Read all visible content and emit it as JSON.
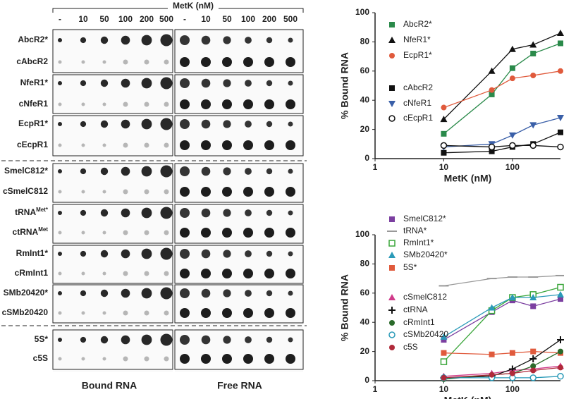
{
  "blot": {
    "header": "MetK (nM)",
    "concentrations": [
      "-",
      "10",
      "50",
      "100",
      "200",
      "500"
    ],
    "rows": [
      "AbcR2*",
      "cAbcR2",
      "NfeR1*",
      "cNfeR1",
      "EcpR1*",
      "cEcpR1",
      "SmelC812*",
      "cSmelC812",
      {
        "text": "tRNA",
        "sup": "Met*"
      },
      {
        "text": "ctRNA",
        "sup": "Met"
      },
      "RmInt1*",
      "cRmInt1",
      "SMb20420*",
      "cSMb20420",
      "5S*",
      "c5S"
    ],
    "footer": [
      "Bound RNA",
      "Free RNA"
    ]
  },
  "chart_data": [
    {
      "type": "line",
      "xlabel": "MetK (nM)",
      "ylabel": "% Bound RNA",
      "xlog": true,
      "xlim": [
        1,
        500
      ],
      "xticks": [
        1,
        10,
        100
      ],
      "ylim": [
        0,
        100
      ],
      "yticks": [
        0,
        20,
        40,
        60,
        80,
        100
      ],
      "x": [
        10,
        50,
        100,
        200,
        500
      ],
      "series": [
        {
          "name": "AbcR2*",
          "color": "#2a8a4a",
          "marker": "square",
          "values": [
            17,
            44,
            62,
            72,
            79
          ]
        },
        {
          "name": "NfeR1*",
          "color": "#111111",
          "marker": "triangle",
          "values": [
            27,
            60,
            75,
            78,
            86
          ]
        },
        {
          "name": "EcpR1*",
          "color": "#e05a3c",
          "marker": "circle",
          "values": [
            35,
            47,
            55,
            57,
            60
          ]
        },
        {
          "name": "cAbcR2",
          "color": "#111111",
          "marker": "square",
          "values": [
            4,
            5,
            8,
            10,
            18
          ]
        },
        {
          "name": "cNfeR1",
          "color": "#3a5fa8",
          "marker": "triangle-down",
          "values": [
            8,
            10,
            16,
            23,
            28
          ]
        },
        {
          "name": "cEcpR1",
          "color": "#111111",
          "marker": "open-circle",
          "values": [
            9,
            8,
            9,
            9,
            8
          ]
        }
      ]
    },
    {
      "type": "line",
      "xlabel": "MetK (nM)",
      "ylabel": "% Bound RNA",
      "xlog": true,
      "xlim": [
        1,
        500
      ],
      "xticks": [
        1,
        10,
        100
      ],
      "ylim": [
        0,
        100
      ],
      "yticks": [
        0,
        20,
        40,
        60,
        80,
        100
      ],
      "x": [
        10,
        50,
        100,
        200,
        500
      ],
      "series": [
        {
          "name": "SmelC812*",
          "color": "#7b3fa0",
          "marker": "square",
          "values": [
            28,
            47,
            55,
            51,
            56
          ]
        },
        {
          "name": "tRNA*",
          "color": "#999999",
          "marker": "line",
          "values": [
            65,
            70,
            71,
            71,
            72
          ]
        },
        {
          "name": "RmInt1*",
          "color": "#3aa63a",
          "marker": "open-square",
          "values": [
            13,
            48,
            57,
            59,
            64
          ]
        },
        {
          "name": "SMb20420*",
          "color": "#2a9ab8",
          "marker": "triangle",
          "values": [
            30,
            50,
            57,
            57,
            59
          ]
        },
        {
          "name": "5S*",
          "color": "#e05a3c",
          "marker": "square",
          "values": [
            19,
            18,
            19,
            20,
            19
          ]
        },
        {
          "name": "cSmelC812",
          "color": "#d03a8a",
          "marker": "triangle",
          "values": [
            3,
            5,
            7,
            8,
            10
          ]
        },
        {
          "name": "ctRNA",
          "color": "#111111",
          "marker": "plus",
          "values": [
            2,
            3,
            8,
            15,
            28
          ]
        },
        {
          "name": "cRmInt1",
          "color": "#2a6a2a",
          "marker": "circle",
          "values": [
            1,
            4,
            5,
            10,
            20
          ]
        },
        {
          "name": "cSMb20420",
          "color": "#2a9ab8",
          "marker": "open-circle",
          "values": [
            2,
            2,
            2,
            2,
            3
          ]
        },
        {
          "name": "c5S",
          "color": "#b02a3a",
          "marker": "circle",
          "values": [
            2,
            4,
            5,
            7,
            9
          ]
        }
      ]
    }
  ]
}
